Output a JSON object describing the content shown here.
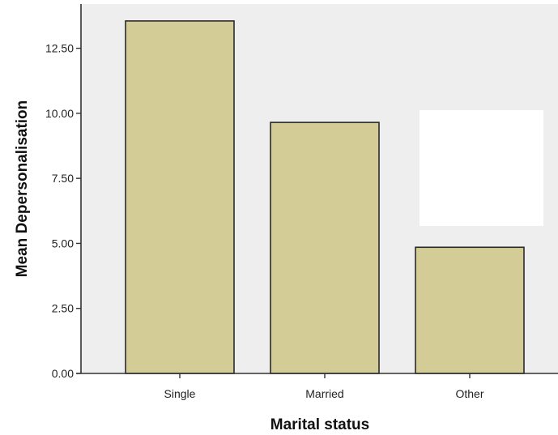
{
  "chart_data": {
    "type": "bar",
    "title": "",
    "xlabel": "Marital status",
    "ylabel": "Mean Depersonalisation",
    "categories": [
      "Single",
      "Married",
      "Other"
    ],
    "values": [
      13.55,
      9.65,
      4.85
    ],
    "ylim": [
      0,
      14.2
    ],
    "yticks": [
      "0.00",
      "2.50",
      "5.00",
      "7.50",
      "10.00",
      "12.50"
    ],
    "ytick_values": [
      0,
      2.5,
      5,
      7.5,
      10,
      12.5
    ],
    "grid": false,
    "legend": "none",
    "colors": {
      "bar_fill": "#d4cc96",
      "bar_stroke": "#2a2a2a",
      "plot_background": "#eeeeee",
      "axis": "#333333"
    }
  }
}
